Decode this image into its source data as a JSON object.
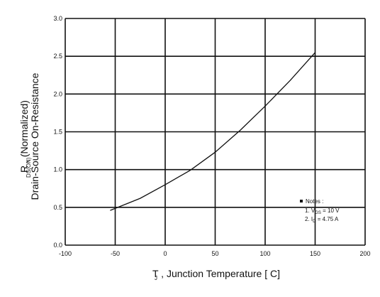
{
  "chart_data": {
    "type": "line",
    "title": "",
    "xlabel": "T  , Junction Temperature [ C]",
    "xlabel_sub": "J",
    "ylabel_line1": "R        , (Normalized)",
    "ylabel_line1_sub": "DS(ON)",
    "ylabel_line2": "Drain-Source On-Resistance",
    "xlim": [
      -100,
      200
    ],
    "ylim": [
      0.0,
      3.0
    ],
    "x_ticks": [
      -100,
      -50,
      0,
      50,
      100,
      150,
      200
    ],
    "x_tick_labels": [
      "-100",
      "-50",
      "0",
      "50",
      "100",
      "150",
      "200"
    ],
    "y_ticks": [
      0.0,
      0.5,
      1.0,
      1.5,
      2.0,
      2.5,
      3.0
    ],
    "y_tick_labels": [
      "0.0",
      "0.5",
      "1.0",
      "1.5",
      "2.0",
      "2.5",
      "3.0"
    ],
    "grid": true,
    "series": [
      {
        "x": [
          -55,
          -25,
          0,
          25,
          50,
          75,
          100,
          125,
          150
        ],
        "y": [
          0.46,
          0.62,
          0.8,
          0.99,
          1.23,
          1.52,
          1.84,
          2.18,
          2.55
        ]
      }
    ],
    "notes": {
      "bullet": "Notes :",
      "line1": "1. V",
      "line1_sub": "GS",
      "line1_rest": " = 10 V",
      "line2": "2. I",
      "line2_sub": "D",
      "line2_rest": " = 4.75 A"
    },
    "colors": {
      "line": "#111111",
      "grid": "#111111",
      "background": "#ffffff"
    }
  }
}
